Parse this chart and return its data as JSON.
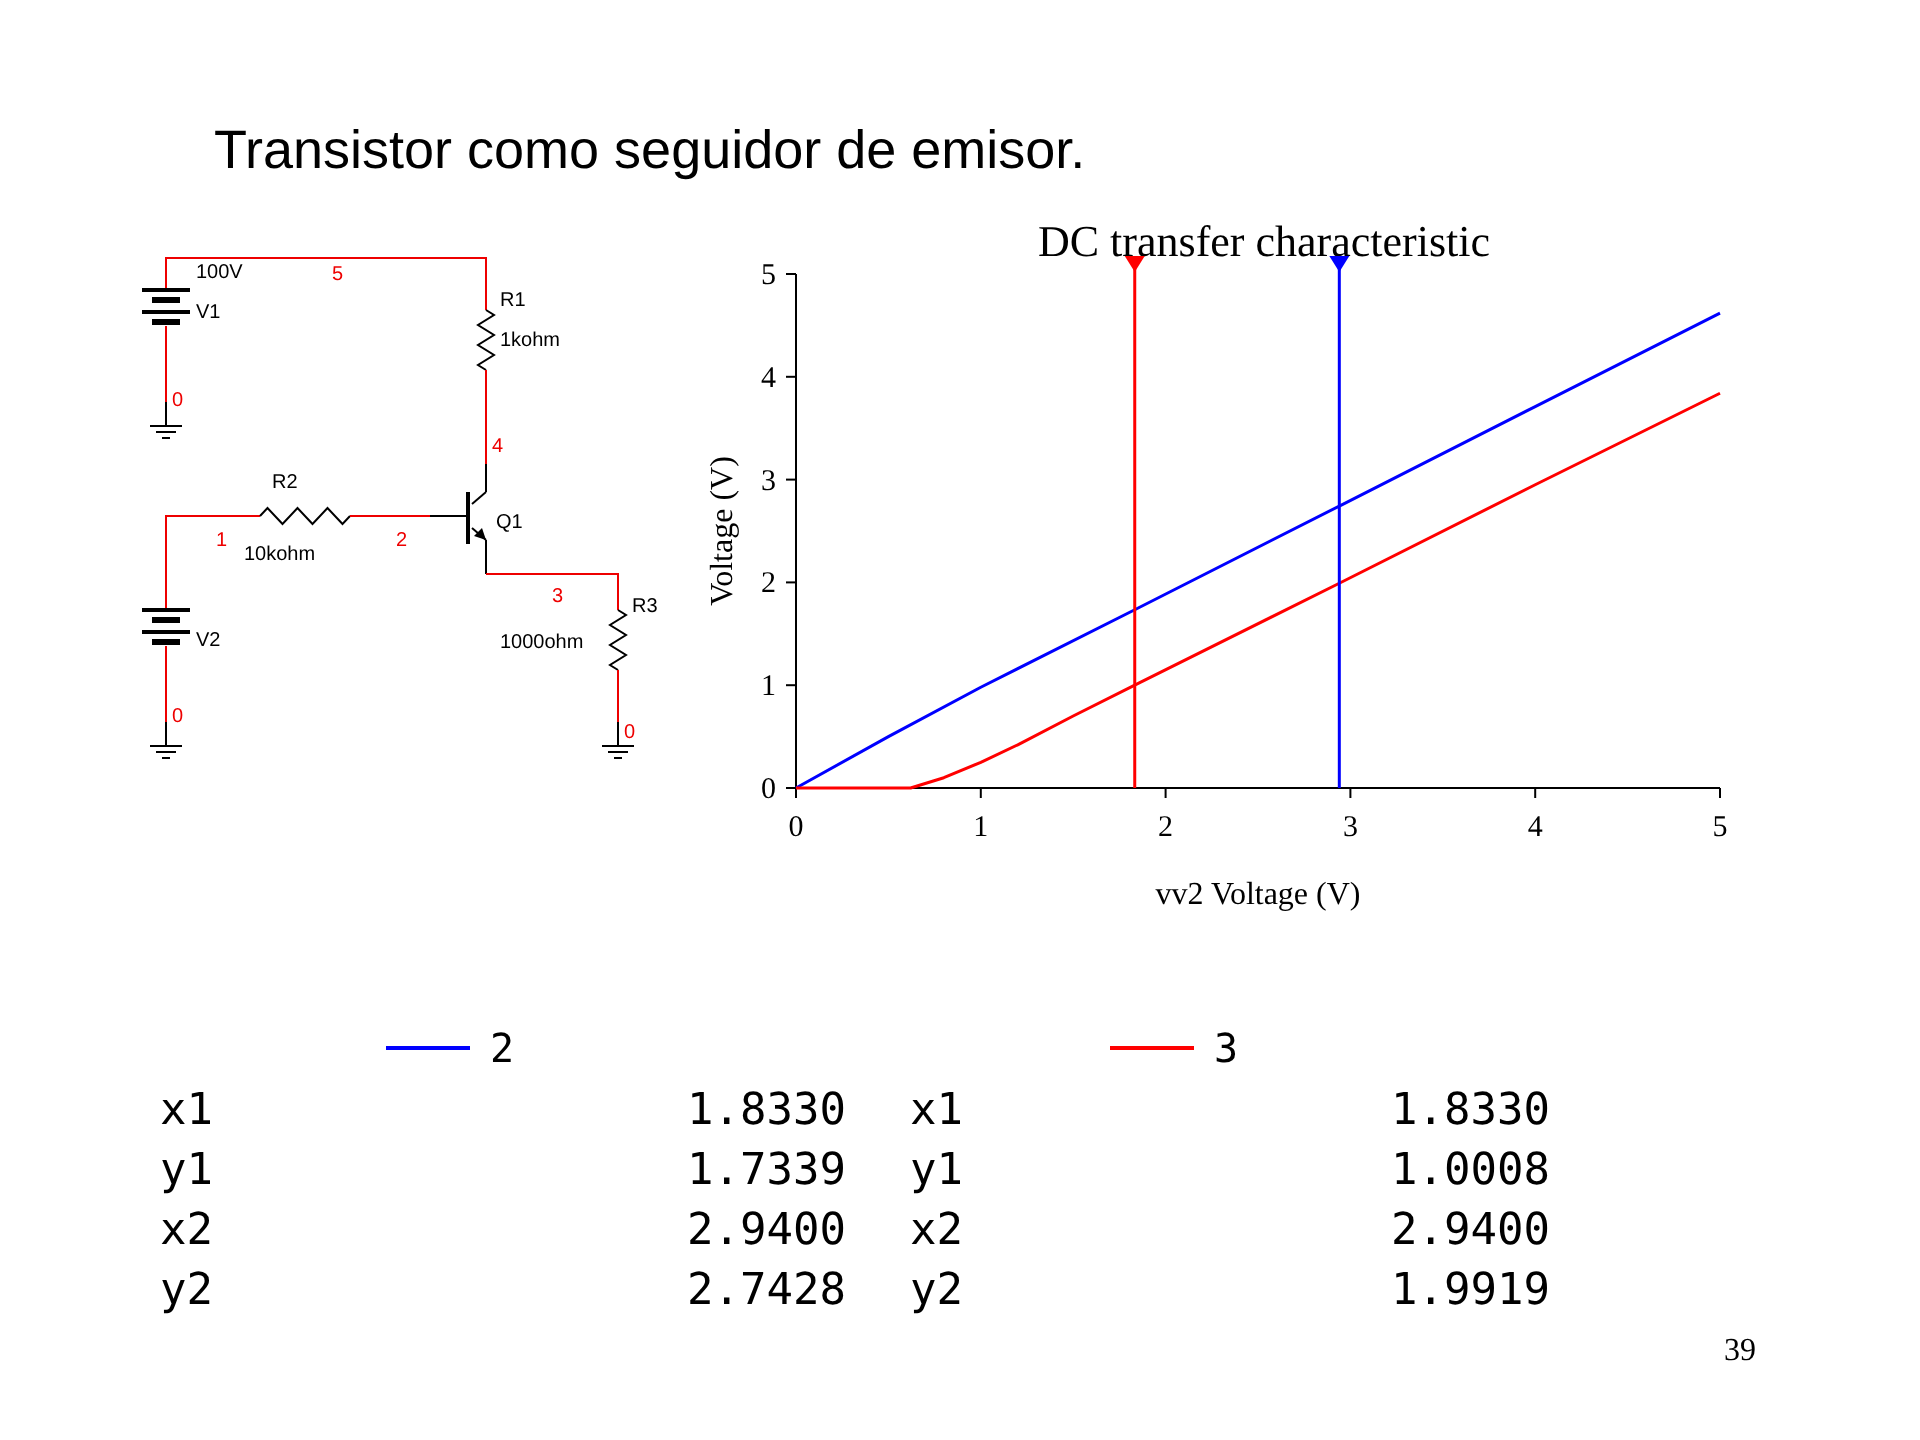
{
  "chart_data": {
    "type": "line",
    "title": "DC transfer characteristic",
    "xlabel": "vv2 Voltage (V)",
    "ylabel": "Voltage (V)",
    "xlim": [
      0,
      5
    ],
    "ylim": [
      0,
      5
    ],
    "xticks": [
      0,
      1,
      2,
      3,
      4,
      5
    ],
    "yticks": [
      0,
      1,
      2,
      3,
      4,
      5
    ],
    "grid": false,
    "legend": "bottom",
    "marker": "none",
    "line_style": "solid",
    "series": [
      {
        "name": "2",
        "color": "#0000ff",
        "x": [
          0,
          0.5,
          1,
          1.833,
          2.94,
          4,
          5
        ],
        "values": [
          0,
          0.5,
          0.98,
          1.7339,
          2.7428,
          3.71,
          4.62
        ]
      },
      {
        "name": "3",
        "color": "#ff0000",
        "x": [
          0,
          0.62,
          0.8,
          1,
          1.2,
          1.5,
          1.833,
          2.94,
          4,
          5
        ],
        "values": [
          0,
          0,
          0.1,
          0.25,
          0.42,
          0.7,
          1.0008,
          1.9919,
          2.95,
          3.84
        ]
      }
    ],
    "ref_lines": [
      {
        "axis": "x",
        "value": 1.833,
        "color": "#ff0000"
      },
      {
        "axis": "x",
        "value": 2.94,
        "color": "#0000ff"
      }
    ],
    "annotations": [
      "Transistor como seguidor de emisor.",
      "100V",
      "5",
      "V1",
      "R1",
      "1kohm",
      "0",
      "4",
      "R2",
      "1",
      "10kohm",
      "2",
      "Q1",
      "3",
      "R3",
      "1000ohm",
      "V2",
      "0",
      "0",
      "x1",
      "1.8330",
      "x1",
      "1.8330",
      "y1",
      "1.7339",
      "y1",
      "1.0008",
      "x2",
      "2.9400",
      "x2",
      "2.9400",
      "y2",
      "2.7428",
      "y2",
      "1.9919",
      "39"
    ]
  }
}
